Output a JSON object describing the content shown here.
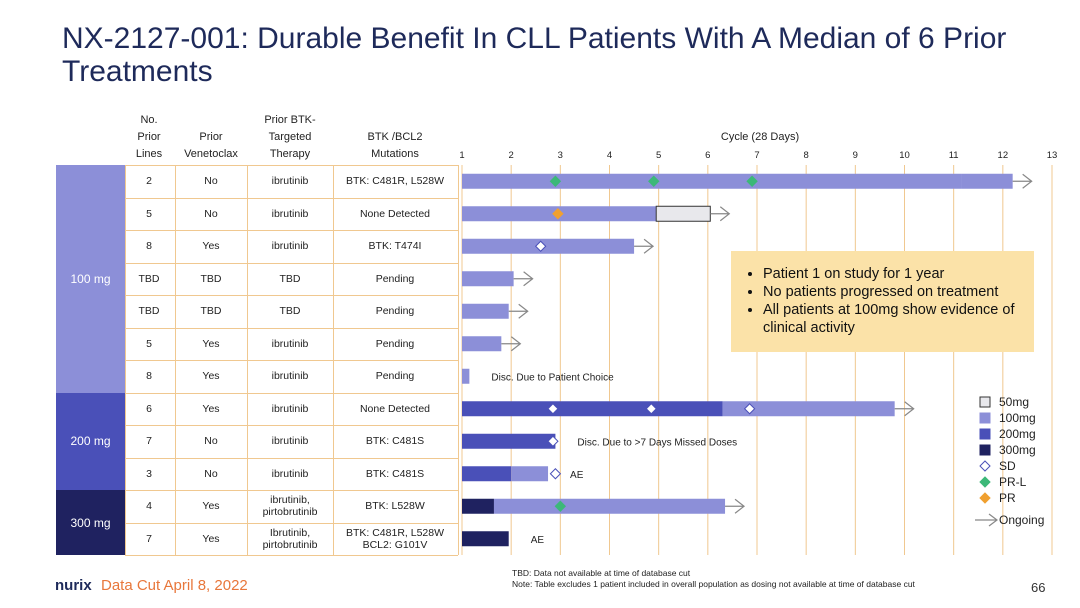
{
  "title": "NX-2127-001: Durable Benefit In CLL Patients With A Median of 6 Prior Treatments",
  "headers": {
    "prior_lines": "No. Prior Lines",
    "prior_ven": "Prior Venetoclax",
    "prior_btk": "Prior BTK- Targeted Therapy",
    "mutations": "BTK /BCL2 Mutations",
    "cycle": "Cycle (28 Days)"
  },
  "doses": [
    {
      "label": "100 mg",
      "color": "#8c8fd8",
      "rows": 7
    },
    {
      "label": "200 mg",
      "color": "#4a50b8",
      "rows": 3
    },
    {
      "label": "300 mg",
      "color": "#1f2260",
      "rows": 2
    }
  ],
  "rows": [
    {
      "lines": "2",
      "ven": "No",
      "btk": "ibrutinib",
      "mut": "BTK: C481R, L528W"
    },
    {
      "lines": "5",
      "ven": "No",
      "btk": "ibrutinib",
      "mut": "None Detected"
    },
    {
      "lines": "8",
      "ven": "Yes",
      "btk": "ibrutinib",
      "mut": "BTK: T474I"
    },
    {
      "lines": "TBD",
      "ven": "TBD",
      "btk": "TBD",
      "mut": "Pending"
    },
    {
      "lines": "TBD",
      "ven": "TBD",
      "btk": "TBD",
      "mut": "Pending"
    },
    {
      "lines": "5",
      "ven": "Yes",
      "btk": "ibrutinib",
      "mut": "Pending"
    },
    {
      "lines": "8",
      "ven": "Yes",
      "btk": "ibrutinib",
      "mut": "Pending"
    },
    {
      "lines": "6",
      "ven": "Yes",
      "btk": "ibrutinib",
      "mut": "None Detected"
    },
    {
      "lines": "7",
      "ven": "No",
      "btk": "ibrutinib",
      "mut": "BTK: C481S"
    },
    {
      "lines": "3",
      "ven": "No",
      "btk": "ibrutinib",
      "mut": "BTK: C481S"
    },
    {
      "lines": "4",
      "ven": "Yes",
      "btk": "ibrutinib, pirtobrutinib",
      "mut": "BTK: L528W"
    },
    {
      "lines": "7",
      "ven": "Yes",
      "btk": "Ibrutinib, pirtobrutinib",
      "mut": "BTK: C481R, L528W BCL2: G101V"
    }
  ],
  "callout": [
    "Patient 1 on study for 1 year",
    "No patients progressed on treatment",
    "All patients at 100mg show evidence of clinical activity"
  ],
  "footer": {
    "logo": "nurix",
    "data_cut": "Data Cut April 8, 2022",
    "footnote1": "TBD: Data not available at time of database cut",
    "footnote2": "Note: Table excludes 1 patient included in overall population as dosing not available at time of database cut",
    "page": "66"
  },
  "chart_data": {
    "type": "swimmer",
    "xlabel": "Cycle (28 Days)",
    "xlim": [
      1,
      13
    ],
    "xticks": [
      1,
      2,
      3,
      4,
      5,
      6,
      7,
      8,
      9,
      10,
      11,
      12,
      13
    ],
    "colors": {
      "50mg": "#e8e8ec",
      "100mg": "#8c8fd8",
      "200mg": "#4a50b8",
      "300mg": "#1f2260",
      "SD": "#ffffff",
      "PR-L": "#3cb878",
      "PR": "#f0a030"
    },
    "legend": [
      {
        "key": "50mg",
        "label": "50mg",
        "shape": "square"
      },
      {
        "key": "100mg",
        "label": "100mg",
        "shape": "square"
      },
      {
        "key": "200mg",
        "label": "200mg",
        "shape": "square"
      },
      {
        "key": "300mg",
        "label": "300mg",
        "shape": "square"
      },
      {
        "key": "SD",
        "label": "SD",
        "shape": "diamond"
      },
      {
        "key": "PR-L",
        "label": "PR-L",
        "shape": "diamond"
      },
      {
        "key": "PR",
        "label": "PR",
        "shape": "diamond"
      },
      {
        "key": "ongoing",
        "label": "Ongoing",
        "shape": "arrow"
      }
    ],
    "patients": [
      {
        "segments": [
          {
            "from": 1,
            "to": 11.15,
            "dose": "100mg"
          },
          {
            "from": 11.15,
            "to": 12.2,
            "dose": "100mg"
          }
        ],
        "markers": [
          {
            "x": 2.9,
            "type": "PR-L"
          },
          {
            "x": 4.9,
            "type": "PR-L"
          },
          {
            "x": 6.9,
            "type": "PR-L"
          }
        ],
        "ongoing": true,
        "note": ""
      },
      {
        "segments": [
          {
            "from": 1,
            "to": 4.95,
            "dose": "100mg"
          },
          {
            "from": 4.95,
            "to": 6.05,
            "dose": "50mg"
          }
        ],
        "markers": [
          {
            "x": 2.95,
            "type": "PR"
          }
        ],
        "ongoing": true,
        "note": ""
      },
      {
        "segments": [
          {
            "from": 1,
            "to": 4.5,
            "dose": "100mg"
          }
        ],
        "markers": [
          {
            "x": 2.6,
            "type": "SD"
          }
        ],
        "ongoing": true,
        "note": ""
      },
      {
        "segments": [
          {
            "from": 1,
            "to": 2.05,
            "dose": "100mg"
          }
        ],
        "markers": [],
        "ongoing": true,
        "note": ""
      },
      {
        "segments": [
          {
            "from": 1,
            "to": 1.95,
            "dose": "100mg"
          }
        ],
        "markers": [],
        "ongoing": true,
        "note": ""
      },
      {
        "segments": [
          {
            "from": 1,
            "to": 1.8,
            "dose": "100mg"
          }
        ],
        "markers": [],
        "ongoing": true,
        "note": ""
      },
      {
        "segments": [
          {
            "from": 1,
            "to": 1.15,
            "dose": "100mg"
          }
        ],
        "markers": [],
        "ongoing": false,
        "note": "Disc. Due to Patient Choice"
      },
      {
        "segments": [
          {
            "from": 1,
            "to": 6.3,
            "dose": "200mg"
          },
          {
            "from": 6.3,
            "to": 9.8,
            "dose": "100mg"
          }
        ],
        "markers": [
          {
            "x": 2.85,
            "type": "SD"
          },
          {
            "x": 4.85,
            "type": "SD"
          },
          {
            "x": 6.85,
            "type": "SD"
          }
        ],
        "ongoing": true,
        "note": ""
      },
      {
        "segments": [
          {
            "from": 1,
            "to": 2.9,
            "dose": "200mg"
          }
        ],
        "markers": [
          {
            "x": 2.85,
            "type": "SD"
          }
        ],
        "ongoing": false,
        "note": "Disc. Due to >7 Days Missed Doses"
      },
      {
        "segments": [
          {
            "from": 1,
            "to": 2,
            "dose": "200mg"
          },
          {
            "from": 2,
            "to": 2.75,
            "dose": "100mg"
          }
        ],
        "markers": [
          {
            "x": 2.9,
            "type": "SD"
          }
        ],
        "ongoing": false,
        "note": "AE"
      },
      {
        "segments": [
          {
            "from": 1,
            "to": 1.65,
            "dose": "300mg"
          },
          {
            "from": 1.65,
            "to": 6.35,
            "dose": "100mg"
          }
        ],
        "markers": [
          {
            "x": 3,
            "type": "PR-L"
          }
        ],
        "ongoing": true,
        "note": ""
      },
      {
        "segments": [
          {
            "from": 1,
            "to": 1.95,
            "dose": "300mg"
          }
        ],
        "markers": [],
        "ongoing": false,
        "note": "AE"
      }
    ]
  }
}
